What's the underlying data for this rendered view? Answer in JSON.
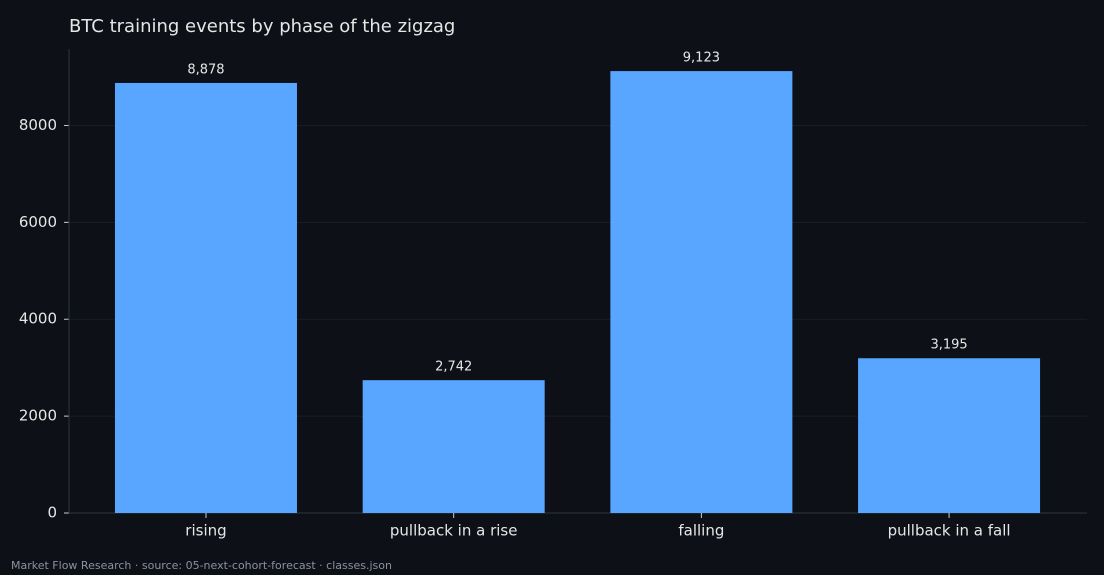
{
  "chart_data": {
    "type": "bar",
    "title": "BTC training events by phase of the zigzag",
    "categories": [
      "rising",
      "pullback in a rise",
      "falling",
      "pullback in a fall"
    ],
    "values": [
      8878,
      2742,
      9123,
      3195
    ],
    "value_labels": [
      "8,878",
      "2,742",
      "9,123",
      "3,195"
    ],
    "color": "#58a6ff",
    "ylim": [
      0,
      9579
    ],
    "yticks": [
      0,
      2000,
      4000,
      6000,
      8000
    ],
    "grid": true,
    "footnote": "Market Flow Research · source: 05-next-cohort-forecast · classes.json"
  }
}
